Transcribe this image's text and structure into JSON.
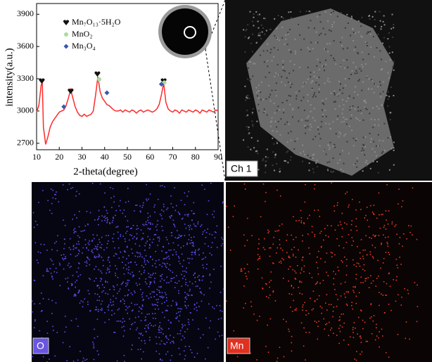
{
  "chart_data": {
    "type": "line",
    "x_label": "2-theta(degree)",
    "y_label": "intensity(a.u.)",
    "xlim": [
      10,
      90
    ],
    "xticks": [
      10,
      20,
      30,
      40,
      50,
      60,
      70,
      80,
      90
    ],
    "ylim": [
      2640,
      4000
    ],
    "yticks": [
      2700,
      3000,
      3300,
      3600,
      3900
    ],
    "series": [
      {
        "name": null,
        "color": "#ff2a2a",
        "x": [
          10,
          11,
          12,
          12.5,
          13,
          14,
          15,
          16,
          17,
          18,
          19,
          20,
          21,
          22,
          23,
          24,
          25,
          26,
          27,
          28,
          29,
          30,
          31,
          32,
          33,
          34,
          35,
          36,
          37,
          38,
          39,
          40,
          41,
          42,
          43,
          44,
          45,
          46,
          47,
          48,
          49,
          50,
          51,
          52,
          53,
          54,
          55,
          56,
          57,
          58,
          59,
          60,
          61,
          62,
          63,
          64,
          65,
          66,
          67,
          68,
          69,
          70,
          71,
          72,
          73,
          74,
          75,
          76,
          77,
          78,
          79,
          80,
          81,
          82,
          83,
          84,
          85,
          86,
          87,
          88,
          89,
          90
        ],
        "values": [
          2990,
          3050,
          3240,
          3270,
          2850,
          2690,
          2760,
          2850,
          2900,
          2930,
          2960,
          2990,
          3000,
          3010,
          3050,
          3120,
          3200,
          3120,
          3040,
          2990,
          2960,
          2950,
          2970,
          2950,
          2960,
          2970,
          3000,
          3150,
          3320,
          3180,
          3120,
          3090,
          3060,
          3050,
          3030,
          3010,
          3000,
          3000,
          3010,
          2990,
          3010,
          3000,
          2990,
          3010,
          3000,
          2980,
          3000,
          3010,
          2990,
          3000,
          3010,
          3000,
          2990,
          3000,
          3020,
          3060,
          3150,
          3260,
          3080,
          3020,
          3000,
          2990,
          3010,
          3000,
          2980,
          3010,
          3000,
          2990,
          3010,
          3000,
          2990,
          3010,
          3000,
          2980,
          3010,
          3000,
          2990,
          3010,
          3000,
          2990,
          3010,
          3000
        ]
      },
      {
        "name": "Mn₇O₁₃·5H₂O",
        "color": "#111111",
        "marker": "heart",
        "x": [
          12.3,
          25,
          36.8,
          66
        ],
        "values": [
          3280,
          3185,
          3345,
          3280
        ]
      },
      {
        "name": "MnO₂",
        "color": "#a8dca0",
        "marker": "circle",
        "x": [
          37.6,
          66.3
        ],
        "values": [
          3295,
          3265
        ]
      },
      {
        "name": "Mn₃O₄",
        "color": "#3a5aa8",
        "marker": "diamond",
        "x": [
          22,
          41,
          65
        ],
        "values": [
          3040,
          3170,
          3250
        ]
      }
    ]
  },
  "images": {
    "sem_label": "Ch 1",
    "oxygen_label": "O",
    "manganese_label": "Mn"
  }
}
